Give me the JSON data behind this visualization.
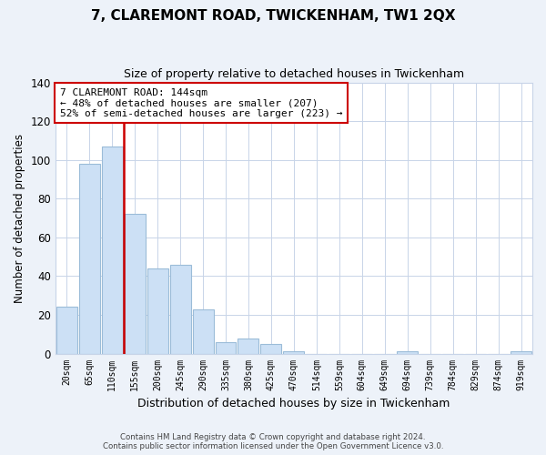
{
  "title": "7, CLAREMONT ROAD, TWICKENHAM, TW1 2QX",
  "subtitle": "Size of property relative to detached houses in Twickenham",
  "xlabel": "Distribution of detached houses by size in Twickenham",
  "ylabel": "Number of detached properties",
  "bar_labels": [
    "20sqm",
    "65sqm",
    "110sqm",
    "155sqm",
    "200sqm",
    "245sqm",
    "290sqm",
    "335sqm",
    "380sqm",
    "425sqm",
    "470sqm",
    "514sqm",
    "559sqm",
    "604sqm",
    "649sqm",
    "694sqm",
    "739sqm",
    "784sqm",
    "829sqm",
    "874sqm",
    "919sqm"
  ],
  "bar_values": [
    24,
    98,
    107,
    72,
    44,
    46,
    23,
    6,
    8,
    5,
    1,
    0,
    0,
    0,
    0,
    1,
    0,
    0,
    0,
    0,
    1
  ],
  "bar_color": "#cce0f5",
  "bar_edge_color": "#9bbcd8",
  "ylim": [
    0,
    140
  ],
  "yticks": [
    0,
    20,
    40,
    60,
    80,
    100,
    120,
    140
  ],
  "vline_pos": 2.5,
  "vline_color": "#cc0000",
  "annotation_title": "7 CLAREMONT ROAD: 144sqm",
  "annotation_line1": "← 48% of detached houses are smaller (207)",
  "annotation_line2": "52% of semi-detached houses are larger (223) →",
  "annotation_box_color": "#ffffff",
  "annotation_box_edge": "#cc0000",
  "footer_line1": "Contains HM Land Registry data © Crown copyright and database right 2024.",
  "footer_line2": "Contains public sector information licensed under the Open Government Licence v3.0.",
  "background_color": "#edf2f9",
  "plot_bg_color": "#ffffff",
  "grid_color": "#c8d4e8"
}
